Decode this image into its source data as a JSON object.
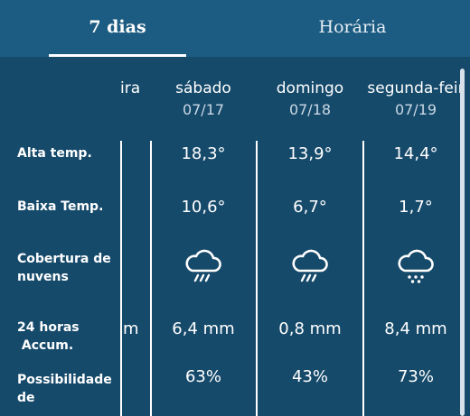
{
  "tabs": [
    {
      "label": "7 dias",
      "active": true
    },
    {
      "label": "Horária",
      "active": false
    }
  ],
  "row_labels": {
    "high": "Alta temp.",
    "low": "Baixa Temp.",
    "clouds_1": "Cobertura de",
    "clouds_2": "nuvens",
    "accum_1": "24 horas",
    "accum_2": " Accum.",
    "chance_1": "Possibilidade",
    "chance_2": "de"
  },
  "partial_column": {
    "day_fragment": "ira",
    "accum_fragment": "m"
  },
  "days": [
    {
      "name": "sábado",
      "date": "07/17",
      "high": "18,3°",
      "low": "10,6°",
      "cloud_icon": "rain-cloud-icon",
      "accum": "6,4 mm",
      "chance": "63%"
    },
    {
      "name": "domingo",
      "date": "07/18",
      "high": "13,9°",
      "low": "6,7°",
      "cloud_icon": "rain-cloud-icon",
      "accum": "0,8 mm",
      "chance": "43%"
    },
    {
      "name": "segunda-feir",
      "date": "07/19",
      "high": "14,4°",
      "low": "1,7°",
      "cloud_icon": "snow-cloud-icon",
      "accum": "8,4 mm",
      "chance": "73%"
    }
  ],
  "colors": {
    "background": "#164a6b",
    "tab_bar": "#1d5c82",
    "text": "#ffffff",
    "date_text": "#c9d8e4"
  }
}
